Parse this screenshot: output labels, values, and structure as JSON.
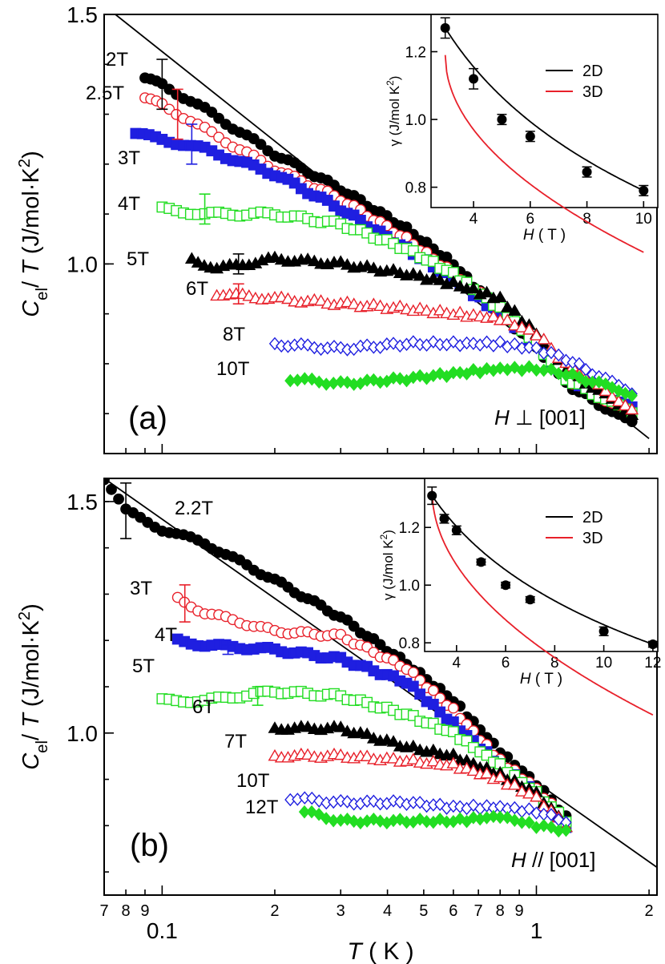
{
  "colors": {
    "black": "#000000",
    "red": "#e8202a",
    "blue": "#1f1fe0",
    "green": "#22dd22"
  },
  "chart_data": [
    {
      "id": "a",
      "type": "scatter",
      "panel_label": "(a)",
      "field_label": "H ⊥ [001]",
      "xscale": "log",
      "xlim": [
        0.07,
        2.1
      ],
      "ylim": [
        0.62,
        1.5
      ],
      "ylabel": "C_el / T (J/mol·K²)",
      "yticks": [
        1.0,
        1.5
      ],
      "ytick_labels": [
        "1.0",
        "1.5"
      ],
      "fit_line": [
        [
          0.075,
          1.5
        ],
        [
          2.0,
          0.65
        ]
      ],
      "series": [
        {
          "name": "2T",
          "label": "2T",
          "color": "black",
          "marker": "filled-circle",
          "values": [
            [
              0.09,
              1.37
            ],
            [
              0.1,
              1.36
            ],
            [
              0.13,
              1.31
            ],
            [
              0.2,
              1.22
            ],
            [
              0.3,
              1.15
            ],
            [
              0.45,
              1.07
            ],
            [
              0.6,
              1.0
            ],
            [
              0.8,
              0.9
            ],
            [
              1.0,
              0.83
            ],
            [
              1.2,
              0.76
            ],
            [
              1.8,
              0.68
            ]
          ]
        },
        {
          "name": "2.5T",
          "label": "2.5T",
          "color": "red",
          "marker": "open-circle",
          "values": [
            [
              0.09,
              1.33
            ],
            [
              0.1,
              1.32
            ],
            [
              0.13,
              1.27
            ],
            [
              0.2,
              1.19
            ],
            [
              0.3,
              1.13
            ],
            [
              0.45,
              1.05
            ],
            [
              0.6,
              0.98
            ],
            [
              0.8,
              0.91
            ],
            [
              1.0,
              0.84
            ],
            [
              1.2,
              0.77
            ],
            [
              1.8,
              0.7
            ]
          ]
        },
        {
          "name": "3T",
          "label": "3T",
          "color": "blue",
          "marker": "filled-square",
          "values": [
            [
              0.085,
              1.26
            ],
            [
              0.1,
              1.25
            ],
            [
              0.13,
              1.23
            ],
            [
              0.2,
              1.18
            ],
            [
              0.3,
              1.11
            ],
            [
              0.45,
              1.03
            ],
            [
              0.6,
              0.97
            ],
            [
              0.8,
              0.9
            ],
            [
              1.0,
              0.84
            ],
            [
              1.2,
              0.77
            ],
            [
              1.8,
              0.71
            ]
          ]
        },
        {
          "name": "4T",
          "label": "4T",
          "color": "green",
          "marker": "open-square",
          "values": [
            [
              0.1,
              1.11
            ],
            [
              0.13,
              1.1
            ],
            [
              0.2,
              1.1
            ],
            [
              0.3,
              1.08
            ],
            [
              0.45,
              1.03
            ],
            [
              0.6,
              0.98
            ],
            [
              0.8,
              0.91
            ],
            [
              1.0,
              0.84
            ],
            [
              1.2,
              0.77
            ],
            [
              1.8,
              0.7
            ]
          ]
        },
        {
          "name": "5T",
          "label": "5T",
          "color": "black",
          "marker": "filled-triangle",
          "values": [
            [
              0.12,
              1.01
            ],
            [
              0.14,
              0.99
            ],
            [
              0.2,
              1.01
            ],
            [
              0.3,
              1.0
            ],
            [
              0.45,
              0.98
            ],
            [
              0.6,
              0.96
            ],
            [
              0.8,
              0.93
            ],
            [
              1.0,
              0.86
            ],
            [
              1.2,
              0.79
            ],
            [
              1.8,
              0.7
            ]
          ]
        },
        {
          "name": "6T",
          "label": "6T",
          "color": "red",
          "marker": "open-triangle",
          "values": [
            [
              0.14,
              0.94
            ],
            [
              0.2,
              0.93
            ],
            [
              0.3,
              0.92
            ],
            [
              0.45,
              0.91
            ],
            [
              0.6,
              0.9
            ],
            [
              0.8,
              0.89
            ],
            [
              1.0,
              0.86
            ],
            [
              1.2,
              0.8
            ],
            [
              1.8,
              0.71
            ]
          ]
        },
        {
          "name": "8T",
          "label": "8T",
          "color": "blue",
          "marker": "open-diamond",
          "values": [
            [
              0.2,
              0.84
            ],
            [
              0.3,
              0.83
            ],
            [
              0.45,
              0.84
            ],
            [
              0.6,
              0.84
            ],
            [
              0.8,
              0.84
            ],
            [
              1.0,
              0.83
            ],
            [
              1.2,
              0.81
            ],
            [
              1.8,
              0.74
            ]
          ]
        },
        {
          "name": "10T",
          "label": "10T",
          "color": "green",
          "marker": "filled-diamond",
          "values": [
            [
              0.22,
              0.77
            ],
            [
              0.3,
              0.76
            ],
            [
              0.45,
              0.77
            ],
            [
              0.6,
              0.78
            ],
            [
              0.8,
              0.79
            ],
            [
              1.0,
              0.79
            ],
            [
              1.2,
              0.78
            ],
            [
              1.8,
              0.74
            ]
          ]
        }
      ],
      "errorbars": [
        {
          "series": "2T",
          "x": 0.1,
          "y": 1.36,
          "err": 0.05
        },
        {
          "series": "2.5T",
          "x": 0.11,
          "y": 1.3,
          "err": 0.05
        },
        {
          "series": "3T",
          "x": 0.12,
          "y": 1.24,
          "err": 0.04
        },
        {
          "series": "4T",
          "x": 0.13,
          "y": 1.11,
          "err": 0.03
        },
        {
          "series": "5T",
          "x": 0.16,
          "y": 1.0,
          "err": 0.02
        },
        {
          "series": "6T",
          "x": 0.16,
          "y": 0.94,
          "err": 0.02
        }
      ],
      "inset": {
        "xlabel": "H ( T )",
        "ylabel": "γ (J/mol K²)",
        "xlim": [
          2.5,
          10.5
        ],
        "ylim": [
          0.74,
          1.31
        ],
        "xticks": [
          4,
          6,
          8,
          10
        ],
        "xtick_labels": [
          "4",
          "6",
          "8",
          "10"
        ],
        "yticks": [
          0.8,
          1.0,
          1.2
        ],
        "ytick_labels": [
          "0.8",
          "1.0",
          "1.2"
        ],
        "legend": [
          {
            "label": "2D",
            "color": "black"
          },
          {
            "label": "3D",
            "color": "red"
          }
        ],
        "points": [
          [
            3,
            1.27
          ],
          [
            4,
            1.12
          ],
          [
            5,
            1.0
          ],
          [
            6,
            0.95
          ],
          [
            8,
            0.845
          ],
          [
            10,
            0.79
          ]
        ],
        "errors": [
          0.03,
          0.03,
          0.015,
          0.015,
          0.015,
          0.015
        ],
        "fit_2d": {
          "A": 0.793,
          "B": 1.3,
          "x0": 0.795
        },
        "fit_3d": {
          "c": 0.22,
          "x0": 3.0,
          "y0": 1.19
        }
      }
    },
    {
      "id": "b",
      "type": "scatter",
      "panel_label": "(b)",
      "field_label": "H // [001]",
      "xscale": "log",
      "xlim": [
        0.07,
        2.1
      ],
      "ylim": [
        0.65,
        1.55
      ],
      "ylabel": "C_el / T (J/mol·K²)",
      "yticks": [
        1.0,
        1.5
      ],
      "ytick_labels": [
        "1.0",
        "1.5"
      ],
      "xlabel": "T ( K )",
      "xticks_major": [
        0.1,
        1
      ],
      "xticks_major_labels": [
        "0.1",
        "1"
      ],
      "xticks_minor": [
        0.07,
        0.08,
        0.09,
        0.2,
        0.3,
        0.4,
        0.5,
        0.6,
        0.7,
        0.8,
        0.9,
        2
      ],
      "xticks_minor_labels": [
        "7",
        "8",
        "9",
        "2",
        "3",
        "4",
        "5",
        "6",
        "7",
        "8",
        "9",
        "2"
      ],
      "fit_line": [
        [
          0.07,
          1.55
        ],
        [
          2.1,
          0.71
        ]
      ],
      "series": [
        {
          "name": "2.2T",
          "label": "2.2T",
          "color": "black",
          "marker": "filled-circle",
          "values": [
            [
              0.07,
              1.55
            ],
            [
              0.08,
              1.48
            ],
            [
              0.1,
              1.44
            ],
            [
              0.13,
              1.41
            ],
            [
              0.2,
              1.33
            ],
            [
              0.3,
              1.25
            ],
            [
              0.45,
              1.15
            ],
            [
              0.6,
              1.07
            ],
            [
              0.8,
              0.96
            ],
            [
              1.0,
              0.89
            ],
            [
              1.2,
              0.82
            ]
          ]
        },
        {
          "name": "3T",
          "label": "3T",
          "color": "red",
          "marker": "open-circle",
          "values": [
            [
              0.11,
              1.29
            ],
            [
              0.13,
              1.26
            ],
            [
              0.2,
              1.22
            ],
            [
              0.3,
              1.21
            ],
            [
              0.45,
              1.14
            ],
            [
              0.6,
              1.05
            ],
            [
              0.8,
              0.94
            ],
            [
              1.0,
              0.88
            ],
            [
              1.2,
              0.81
            ]
          ]
        },
        {
          "name": "4T",
          "label": "4T",
          "color": "blue",
          "marker": "filled-square",
          "values": [
            [
              0.11,
              1.2
            ],
            [
              0.13,
              1.19
            ],
            [
              0.2,
              1.18
            ],
            [
              0.3,
              1.16
            ],
            [
              0.45,
              1.11
            ],
            [
              0.6,
              1.02
            ],
            [
              0.8,
              0.93
            ],
            [
              1.0,
              0.87
            ],
            [
              1.2,
              0.8
            ]
          ]
        },
        {
          "name": "5T",
          "label": "5T",
          "color": "green",
          "marker": "open-square",
          "values": [
            [
              0.1,
              1.07
            ],
            [
              0.13,
              1.07
            ],
            [
              0.2,
              1.09
            ],
            [
              0.3,
              1.08
            ],
            [
              0.45,
              1.04
            ],
            [
              0.6,
              1.0
            ],
            [
              0.8,
              0.93
            ],
            [
              1.0,
              0.87
            ],
            [
              1.2,
              0.81
            ]
          ]
        },
        {
          "name": "6T",
          "label": "6T",
          "color": "black",
          "marker": "filled-triangle",
          "values": [
            [
              0.2,
              1.01
            ],
            [
              0.3,
              1.01
            ],
            [
              0.45,
              0.97
            ],
            [
              0.6,
              0.95
            ],
            [
              0.8,
              0.91
            ],
            [
              1.0,
              0.87
            ],
            [
              1.2,
              0.8
            ]
          ]
        },
        {
          "name": "7T",
          "label": "7T",
          "color": "red",
          "marker": "open-triangle",
          "values": [
            [
              0.2,
              0.95
            ],
            [
              0.3,
              0.95
            ],
            [
              0.45,
              0.94
            ],
            [
              0.6,
              0.93
            ],
            [
              0.8,
              0.9
            ],
            [
              1.0,
              0.86
            ],
            [
              1.2,
              0.8
            ]
          ]
        },
        {
          "name": "10T",
          "label": "10T",
          "color": "blue",
          "marker": "open-diamond",
          "values": [
            [
              0.22,
              0.86
            ],
            [
              0.3,
              0.85
            ],
            [
              0.45,
              0.85
            ],
            [
              0.6,
              0.84
            ],
            [
              0.8,
              0.84
            ],
            [
              1.0,
              0.83
            ],
            [
              1.2,
              0.81
            ]
          ]
        },
        {
          "name": "12T",
          "label": "12T",
          "color": "green",
          "marker": "filled-diamond",
          "values": [
            [
              0.24,
              0.83
            ],
            [
              0.3,
              0.81
            ],
            [
              0.45,
              0.81
            ],
            [
              0.6,
              0.81
            ],
            [
              0.8,
              0.82
            ],
            [
              1.0,
              0.8
            ],
            [
              1.2,
              0.79
            ]
          ]
        }
      ],
      "errorbars": [
        {
          "series": "2.2T",
          "x": 0.08,
          "y": 1.48,
          "err": 0.06
        },
        {
          "series": "3T",
          "x": 0.115,
          "y": 1.28,
          "err": 0.04
        },
        {
          "series": "4T",
          "x": 0.15,
          "y": 1.18,
          "err": 0.01
        },
        {
          "series": "5T",
          "x": 0.18,
          "y": 1.08,
          "err": 0.02
        }
      ],
      "inset": {
        "xlabel": "H ( T )",
        "ylabel": "γ (J/mol K²)",
        "xlim": [
          2.7,
          12.2
        ],
        "ylim": [
          0.77,
          1.37
        ],
        "xticks": [
          4,
          6,
          8,
          10,
          12
        ],
        "xtick_labels": [
          "4",
          "6",
          "8",
          "10",
          "12"
        ],
        "yticks": [
          0.8,
          1.0,
          1.2
        ],
        "ytick_labels": [
          "0.8",
          "1.0",
          "1.2"
        ],
        "legend": [
          {
            "label": "2D",
            "color": "black"
          },
          {
            "label": "3D",
            "color": "red"
          }
        ],
        "points": [
          [
            3,
            1.31
          ],
          [
            3.5,
            1.23
          ],
          [
            4,
            1.19
          ],
          [
            5,
            1.08
          ],
          [
            6,
            1.0
          ],
          [
            7,
            0.95
          ],
          [
            10,
            0.84
          ],
          [
            12,
            0.795
          ]
        ],
        "errors": [
          0.03,
          0.015,
          0.015,
          0.01,
          0.01,
          0.01,
          0.015,
          0.01
        ],
        "fit_2d": {
          "A": 0.815,
          "B": 1.45,
          "x0": 0.89
        },
        "fit_3d": {
          "c": 0.26,
          "x0": 3.0,
          "y0": 1.33
        }
      }
    }
  ]
}
